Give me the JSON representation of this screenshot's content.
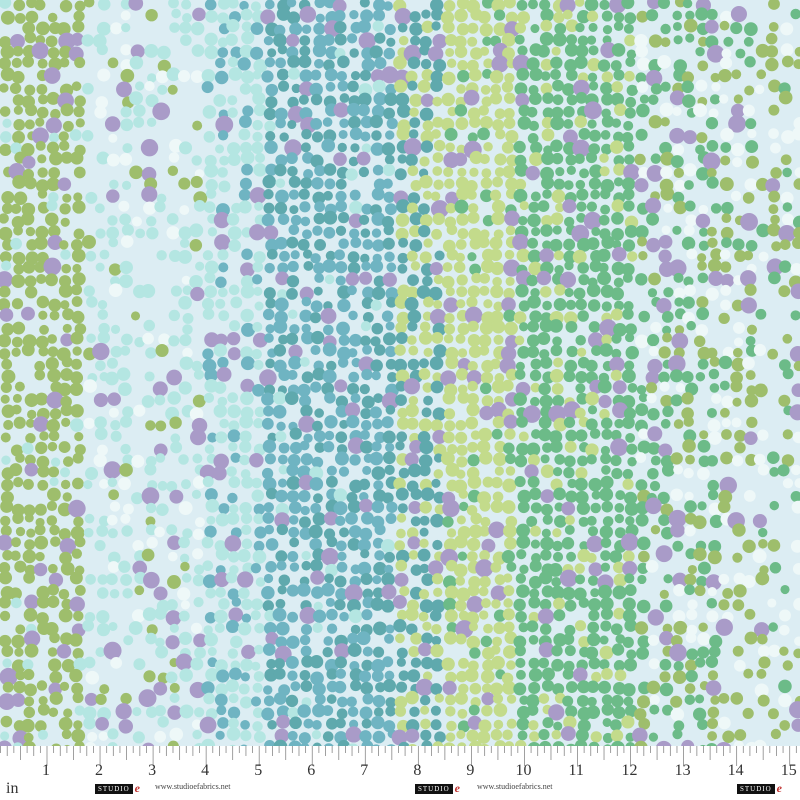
{
  "image": {
    "colors": {
      "background": "#dcedf3",
      "green": "#9ebe6c",
      "lavender": "#a99bc8",
      "aqua": "#b4e6e2",
      "teal_blue": "#6fb4c2",
      "teal": "#5fa9ad",
      "light_green": "#c3db8b",
      "medium_green": "#6cbb88"
    }
  },
  "ruler": {
    "unit": "in",
    "labels": [
      "1",
      "2",
      "3",
      "4",
      "5",
      "6",
      "7",
      "8",
      "9",
      "10",
      "11",
      "12",
      "13",
      "14",
      "15"
    ],
    "brand": "STUDIO e fabrics",
    "url": "www.studioefabrics.net"
  }
}
